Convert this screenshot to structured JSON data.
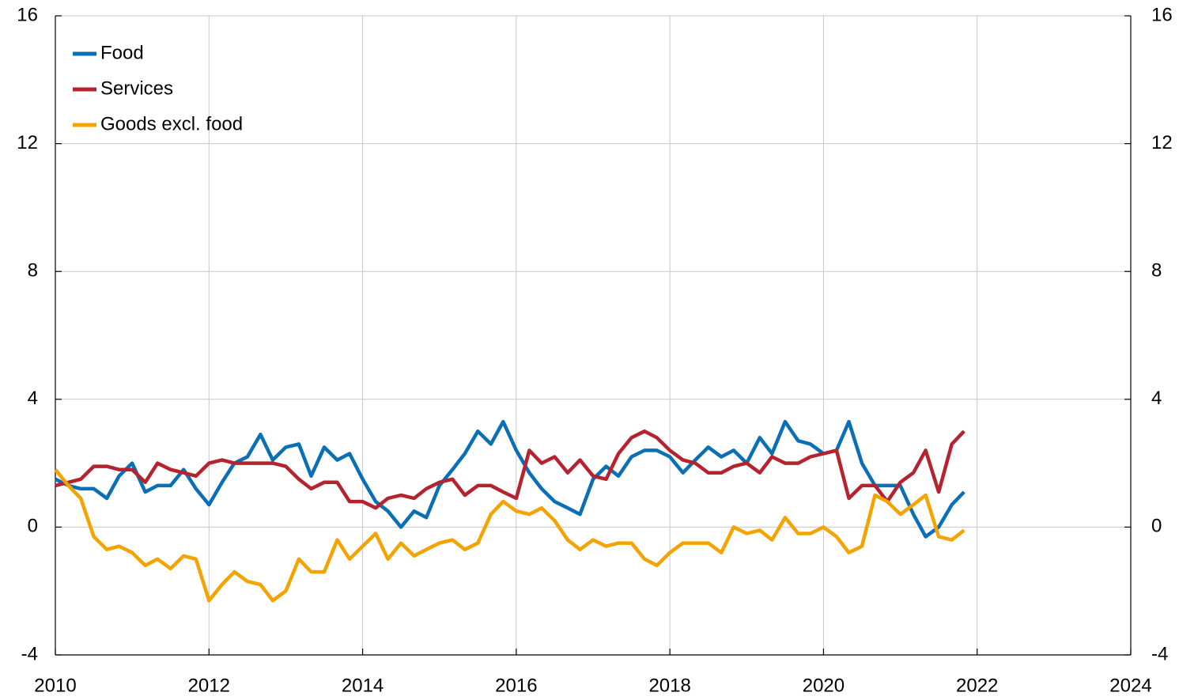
{
  "chart_data": {
    "type": "line",
    "x": [
      2010,
      2010.17,
      2010.33,
      2010.5,
      2010.67,
      2010.83,
      2011,
      2011.17,
      2011.33,
      2011.5,
      2011.67,
      2011.83,
      2012,
      2012.17,
      2012.33,
      2012.5,
      2012.67,
      2012.83,
      2013,
      2013.17,
      2013.33,
      2013.5,
      2013.67,
      2013.83,
      2014,
      2014.17,
      2014.33,
      2014.5,
      2014.67,
      2014.83,
      2015,
      2015.17,
      2015.33,
      2015.5,
      2015.67,
      2015.83,
      2016,
      2016.17,
      2016.33,
      2016.5,
      2016.67,
      2016.83,
      2017,
      2017.17,
      2017.33,
      2017.5,
      2017.67,
      2017.83,
      2018,
      2018.17,
      2018.33,
      2018.5,
      2018.67,
      2018.83,
      2019,
      2019.17,
      2019.33,
      2019.5,
      2019.67,
      2019.83,
      2020,
      2020.17,
      2020.33,
      2020.5,
      2020.67,
      2020.83,
      2021,
      2021.17,
      2021.33,
      2021.5,
      2021.67,
      2021.83
    ],
    "series": [
      {
        "name": "Food",
        "color": "#0a6fb5",
        "values": [
          1.5,
          1.3,
          1.2,
          1.2,
          0.9,
          1.6,
          2.0,
          1.1,
          1.3,
          1.3,
          1.8,
          1.2,
          0.7,
          1.4,
          2.0,
          2.2,
          2.9,
          2.1,
          2.5,
          2.6,
          1.6,
          2.5,
          2.1,
          2.3,
          1.5,
          0.8,
          0.5,
          0.0,
          0.5,
          0.3,
          1.3,
          1.8,
          2.3,
          3.0,
          2.6,
          3.3,
          2.4,
          1.7,
          1.2,
          0.8,
          0.6,
          0.4,
          1.5,
          1.9,
          1.6,
          2.2,
          2.4,
          2.4,
          2.2,
          1.7,
          2.1,
          2.5,
          2.2,
          2.4,
          2.0,
          2.8,
          2.3,
          3.3,
          2.7,
          2.6,
          2.3,
          2.4,
          3.3,
          2.0,
          1.3,
          1.3,
          1.3,
          0.4,
          -0.3,
          0.0,
          0.7,
          1.1
        ]
      },
      {
        "name": "Services",
        "color": "#b5232f",
        "values": [
          1.3,
          1.4,
          1.5,
          1.9,
          1.9,
          1.8,
          1.8,
          1.4,
          2.0,
          1.8,
          1.7,
          1.6,
          2.0,
          2.1,
          2.0,
          2.0,
          2.0,
          2.0,
          1.9,
          1.5,
          1.2,
          1.4,
          1.4,
          0.8,
          0.8,
          0.6,
          0.9,
          1.0,
          0.9,
          1.2,
          1.4,
          1.5,
          1.0,
          1.3,
          1.3,
          1.1,
          0.9,
          2.4,
          2.0,
          2.2,
          1.7,
          2.1,
          1.6,
          1.5,
          2.3,
          2.8,
          3.0,
          2.8,
          2.4,
          2.1,
          2.0,
          1.7,
          1.7,
          1.9,
          2.0,
          1.7,
          2.2,
          2.0,
          2.0,
          2.2,
          2.3,
          2.4,
          0.9,
          1.3,
          1.3,
          0.8,
          1.4,
          1.7,
          2.4,
          1.1,
          2.6,
          3.0
        ]
      },
      {
        "name": "Goods excl. food",
        "color": "#f5a300",
        "values": [
          1.8,
          1.3,
          0.9,
          -0.3,
          -0.7,
          -0.6,
          -0.8,
          -1.2,
          -1.0,
          -1.3,
          -0.9,
          -1.0,
          -2.3,
          -1.8,
          -1.4,
          -1.7,
          -1.8,
          -2.3,
          -2.0,
          -1.0,
          -1.4,
          -1.4,
          -0.4,
          -1.0,
          -0.6,
          -0.2,
          -1.0,
          -0.5,
          -0.9,
          -0.7,
          -0.5,
          -0.4,
          -0.7,
          -0.5,
          0.4,
          0.8,
          0.5,
          0.4,
          0.6,
          0.2,
          -0.4,
          -0.7,
          -0.4,
          -0.6,
          -0.5,
          -0.5,
          -1.0,
          -1.2,
          -0.8,
          -0.5,
          -0.5,
          -0.5,
          -0.8,
          0.0,
          -0.2,
          -0.1,
          -0.4,
          0.3,
          -0.2,
          -0.2,
          0.0,
          -0.3,
          -0.8,
          -0.6,
          1.0,
          0.8,
          0.4,
          0.7,
          1.0,
          -0.3,
          -0.4,
          -0.1
        ]
      }
    ],
    "xlim": [
      2010,
      2024
    ],
    "xticks": [
      2010,
      2012,
      2014,
      2016,
      2018,
      2020,
      2022,
      2024
    ],
    "ylim": [
      -4,
      16
    ],
    "yticks": [
      -4,
      0,
      4,
      8,
      12,
      16
    ],
    "y2lim": [
      -4,
      16
    ],
    "y2ticks": [
      -4,
      0,
      4,
      8,
      12,
      16
    ],
    "grid": true,
    "legend": "upper left"
  }
}
